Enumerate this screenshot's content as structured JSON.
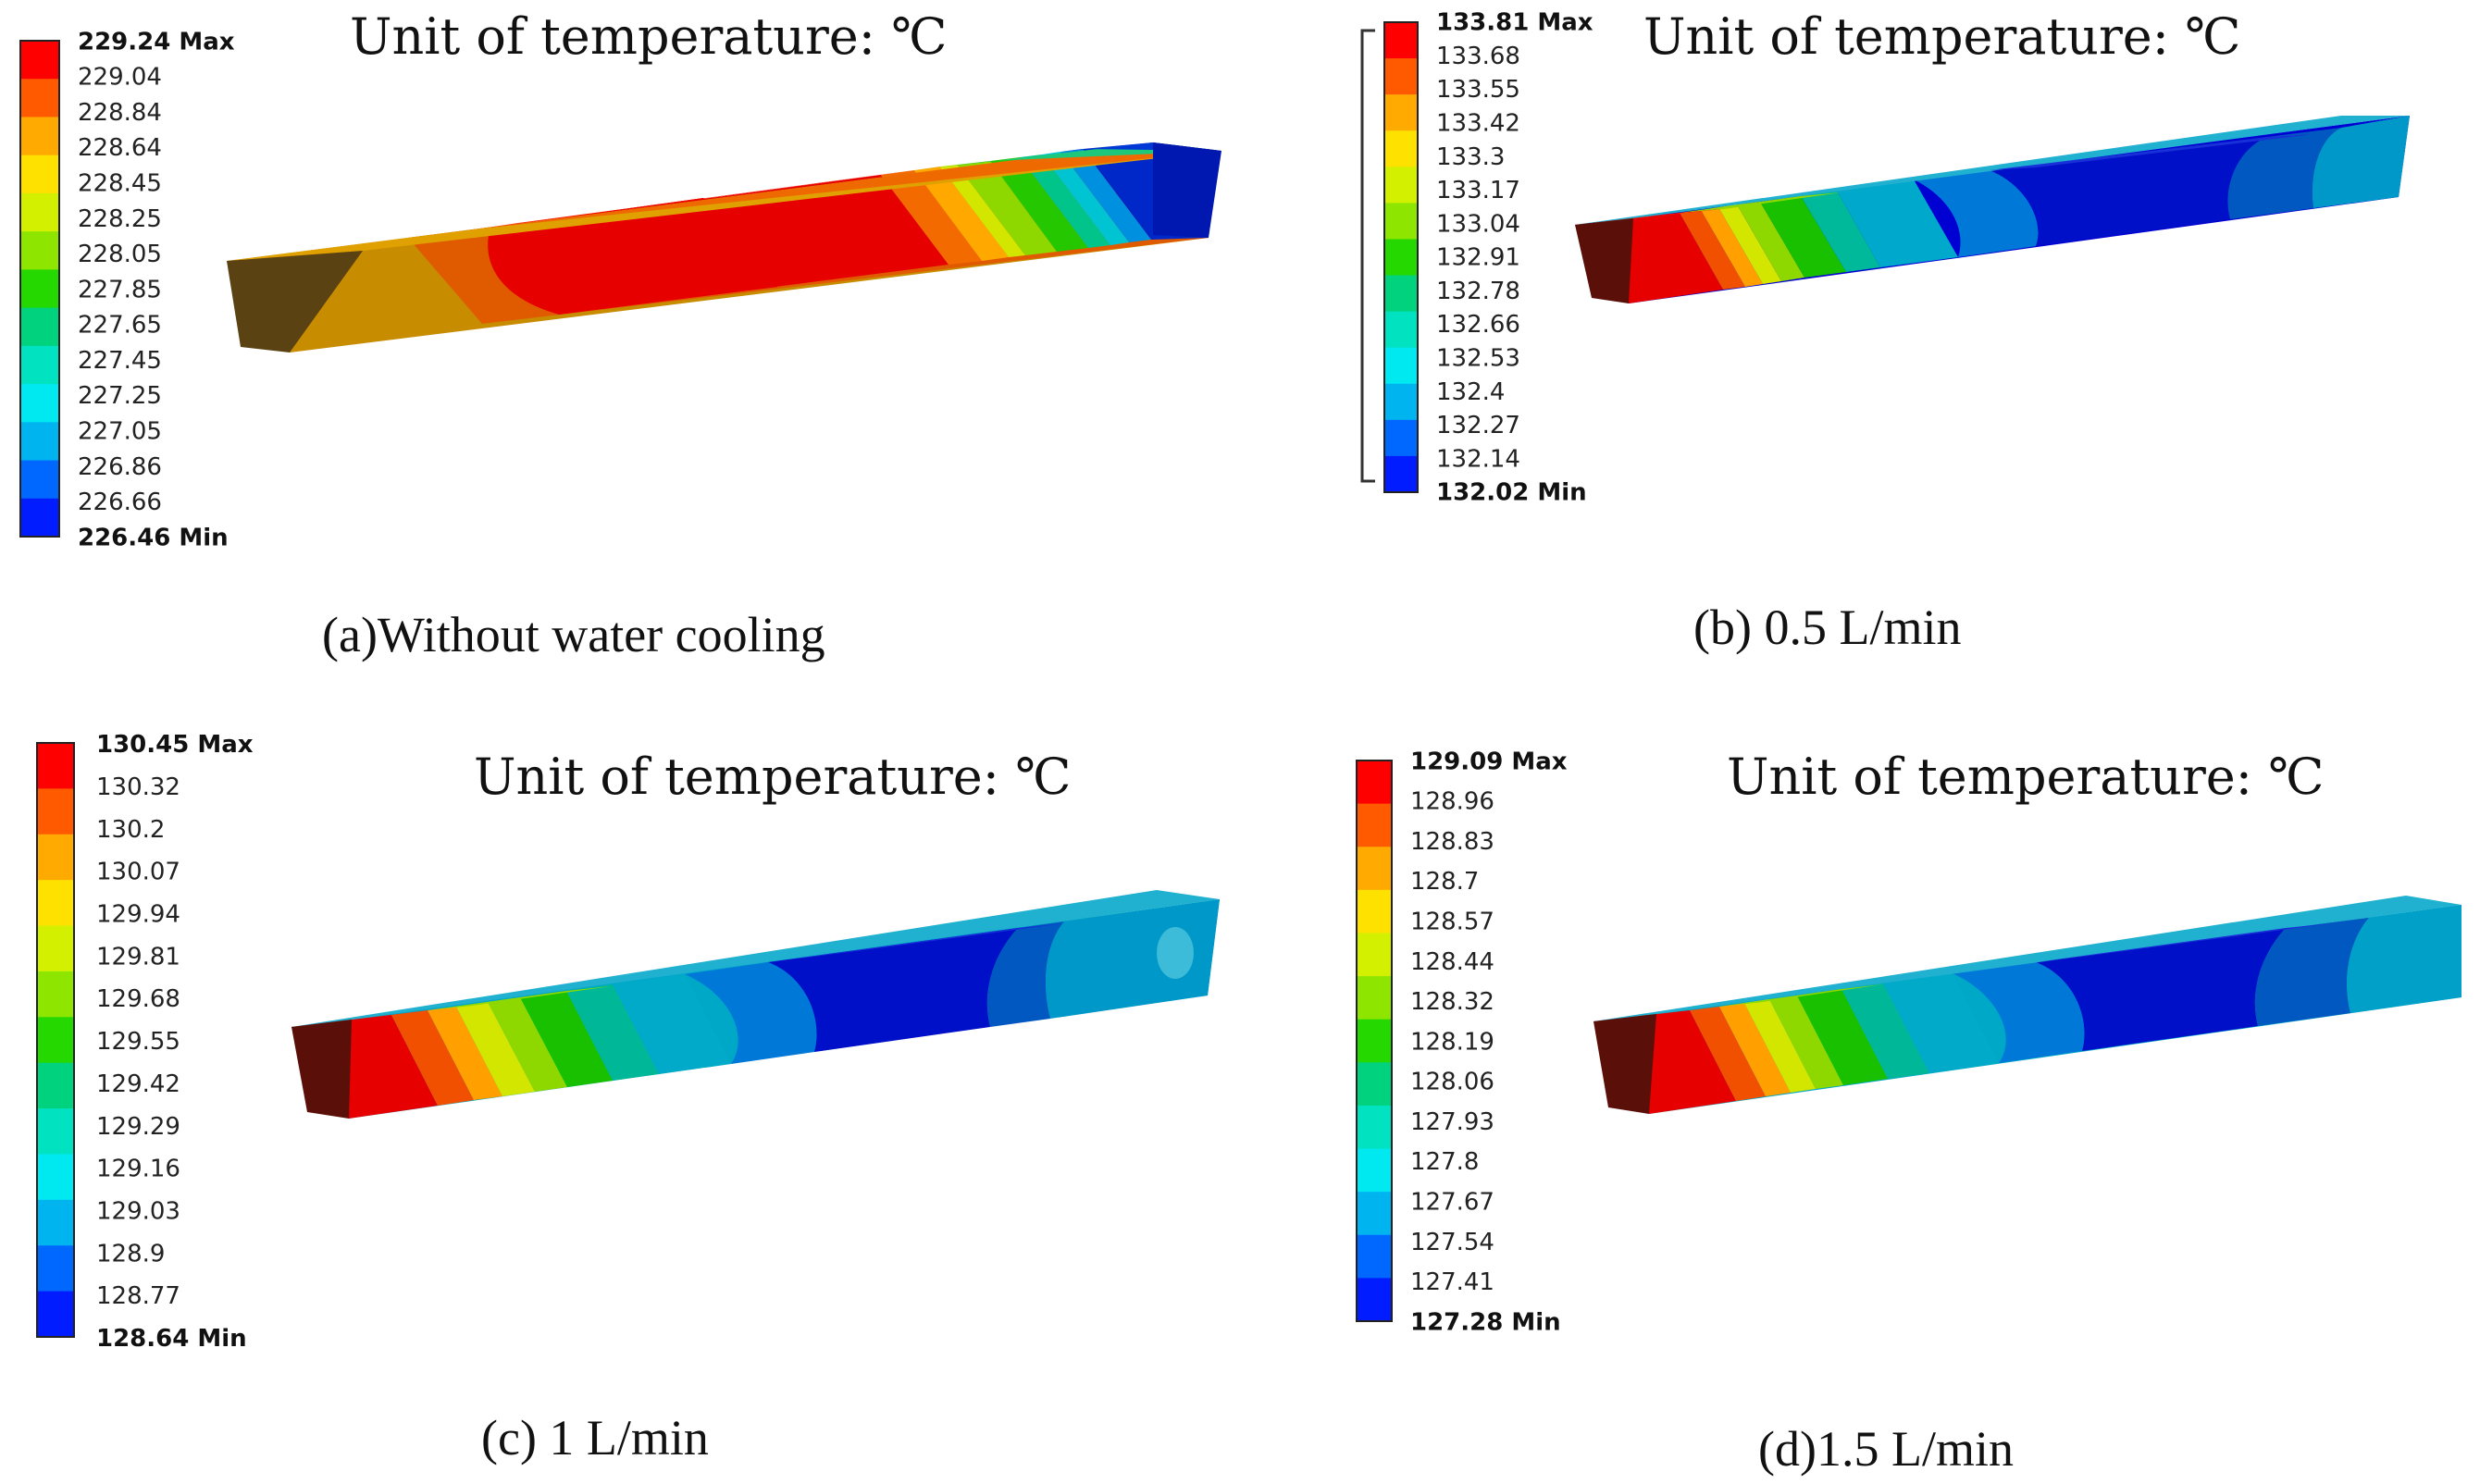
{
  "figure": {
    "panels": [
      {
        "id": "a",
        "caption": "(a)Without water cooling",
        "unit_title": "Unit of temperature: ℃",
        "legend": {
          "max_label": "229.24 Max",
          "ticks": [
            "229.04",
            "228.84",
            "228.64",
            "228.45",
            "228.25",
            "228.05",
            "227.85",
            "227.65",
            "227.45",
            "227.25",
            "227.05",
            "226.86",
            "226.66"
          ],
          "min_label": "226.46 Min"
        }
      },
      {
        "id": "b",
        "caption": "(b) 0.5 L/min",
        "unit_title": "Unit of temperature: ℃",
        "legend": {
          "max_label": "133.81 Max",
          "ticks": [
            "133.68",
            "133.55",
            "133.42",
            "133.3",
            "133.17",
            "133.04",
            "132.91",
            "132.78",
            "132.66",
            "132.53",
            "132.4",
            "132.27",
            "132.14"
          ],
          "min_label": "132.02 Min"
        }
      },
      {
        "id": "c",
        "caption": "(c) 1 L/min",
        "unit_title": "Unit of temperature: ℃",
        "legend": {
          "max_label": "130.45 Max",
          "ticks": [
            "130.32",
            "130.2",
            "130.07",
            "129.94",
            "129.81",
            "129.68",
            "129.55",
            "129.42",
            "129.29",
            "129.16",
            "129.03",
            "128.9",
            "128.77"
          ],
          "min_label": "128.64 Min"
        }
      },
      {
        "id": "d",
        "caption": "(d)1.5 L/min",
        "unit_title": "Unit of temperature: ℃",
        "legend": {
          "max_label": "129.09 Max",
          "ticks": [
            "128.96",
            "128.83",
            "128.7",
            "128.57",
            "128.44",
            "128.32",
            "128.19",
            "128.06",
            "127.93",
            "127.8",
            "127.67",
            "127.54",
            "127.41"
          ],
          "min_label": "127.28 Min"
        }
      }
    ],
    "colormap": [
      "#ff0000",
      "#ff5a00",
      "#ffaa00",
      "#ffe100",
      "#d2f000",
      "#8ee600",
      "#25d800",
      "#00d27d",
      "#00e2c0",
      "#00e8f0",
      "#00b4f0",
      "#0068ff",
      "#001cff"
    ],
    "colors": {
      "bar_dark_end": "#5a1008",
      "bar_brown_end": "#5a4212",
      "bar_ochre": "#c88c00"
    }
  }
}
